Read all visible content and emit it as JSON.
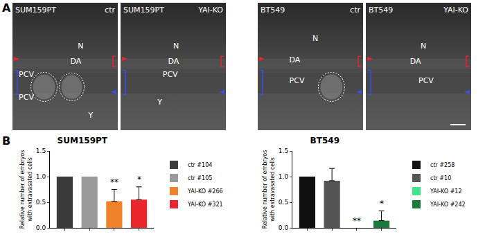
{
  "panel_labels": [
    "A",
    "B"
  ],
  "images": [
    {
      "cell_line": "SUM159PT",
      "condition": "ctr",
      "labels": [
        "N",
        "DA",
        "PCV",
        "PCV",
        "Y"
      ]
    },
    {
      "cell_line": "SUM159PT",
      "condition": "YAI-KO",
      "labels": [
        "N",
        "DA",
        "PCV",
        "Y"
      ]
    },
    {
      "cell_line": "BT549",
      "condition": "ctr",
      "labels": [
        "N",
        "DA",
        "PCV"
      ]
    },
    {
      "cell_line": "BT549",
      "condition": "YAI-KO",
      "labels": [
        "N",
        "DA",
        "PCV"
      ]
    }
  ],
  "chart_data": [
    {
      "type": "bar",
      "title": "SUM159PT",
      "y_label": "Relative number of embryos\nwith extravasated cells",
      "categories": [
        "ctr #104",
        "ctr #105",
        "YAI-KO #266",
        "YAI-KO #321"
      ],
      "values": [
        1.0,
        1.0,
        0.52,
        0.55
      ],
      "errors": [
        null,
        null,
        0.23,
        0.25
      ],
      "colors": [
        "#3a3a3a",
        "#9a9a9a",
        "#f0822c",
        "#e8262b"
      ],
      "annotations": [
        {
          "category": "YAI-KO #266",
          "text": "**"
        },
        {
          "category": "YAI-KO #321",
          "text": "*"
        }
      ],
      "ylim": [
        0,
        1.5
      ],
      "yticks": [
        {
          "value": 0,
          "label": "0.0"
        },
        0.5,
        {
          "value": 1,
          "label": "1.0"
        },
        1.5
      ],
      "tick_labels": "y",
      "legend": "right",
      "grid": false
    },
    {
      "type": "bar",
      "title": "BT549",
      "y_label": "Relative number of embryos\nwith extravasated cells",
      "categories": [
        "ctr #258",
        "ctr #10",
        "YAI-KO #12",
        "YAI-KO #242"
      ],
      "values": [
        1.0,
        0.92,
        0,
        0.14
      ],
      "errors": [
        null,
        0.24,
        null,
        0.19
      ],
      "colors": [
        "#111111",
        "#555555",
        "#3ee58a",
        "#1b7a3b"
      ],
      "annotations": [
        {
          "category": "YAI-KO #12",
          "text": "**"
        },
        {
          "category": "YAI-KO #242",
          "text": "*"
        }
      ],
      "ylim": [
        0,
        1.5
      ],
      "yticks": [
        {
          "value": 0,
          "label": "0.0"
        },
        0.5,
        {
          "value": 1,
          "label": "1.0"
        },
        1.5
      ],
      "tick_labels": "y",
      "legend": "right",
      "grid": false
    }
  ]
}
